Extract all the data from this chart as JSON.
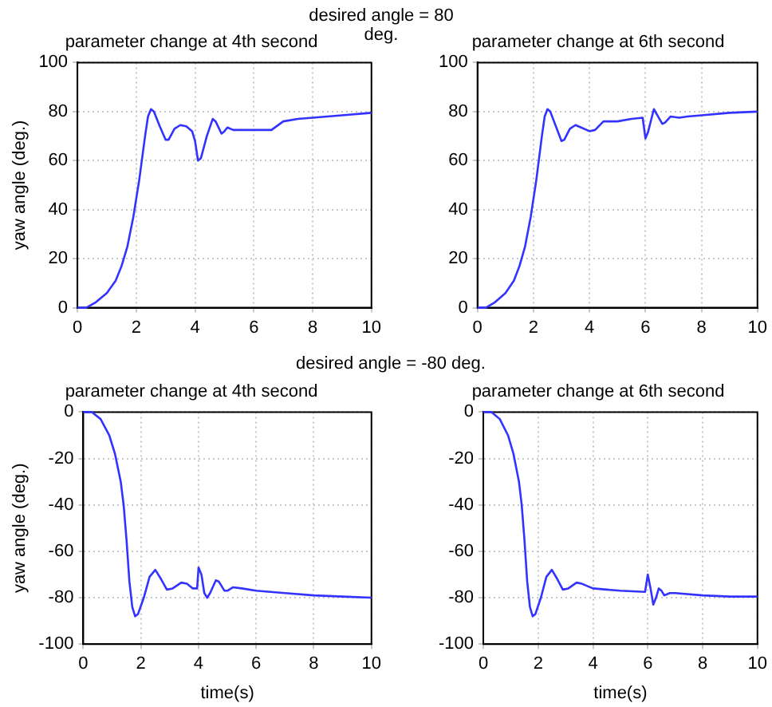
{
  "chart_data": [
    {
      "type": "line",
      "title": "parameter change at 4th second",
      "ylabel": "yaw angle (deg.)",
      "annotations": [
        "desired angle = 80 deg."
      ],
      "xlim": [
        0,
        10
      ],
      "xticks": [
        0,
        2,
        4,
        6,
        8,
        10
      ],
      "ylim": [
        0,
        100
      ],
      "yticks": [
        0,
        20,
        40,
        60,
        80,
        100
      ],
      "grid": true,
      "legend": false,
      "marker": "none",
      "line_style": "solid",
      "series": [
        {
          "color": "#3333ff",
          "x": [
            0,
            0.3,
            0.6,
            1.0,
            1.3,
            1.5,
            1.7,
            1.9,
            2.1,
            2.3,
            2.4,
            2.5,
            2.6,
            2.8,
            3.0,
            3.1,
            3.3,
            3.5,
            3.7,
            3.9,
            4.0,
            4.1,
            4.2,
            4.4,
            4.6,
            4.7,
            4.9,
            5.0,
            5.1,
            5.3,
            6.0,
            6.6,
            7.0,
            7.5,
            8,
            9,
            10
          ],
          "values": [
            0,
            0,
            2,
            6,
            11,
            17,
            25,
            37,
            52,
            70,
            78,
            81,
            80,
            74,
            68.5,
            68.5,
            73,
            74.5,
            74,
            72,
            68,
            60,
            61,
            70,
            77,
            76,
            71,
            72,
            73.5,
            72.5,
            72.5,
            72.5,
            76,
            77,
            77.5,
            78.5,
            79.5
          ]
        }
      ]
    },
    {
      "type": "line",
      "title": "parameter change at 6th second",
      "xlim": [
        0,
        10
      ],
      "xticks": [
        0,
        2,
        4,
        6,
        8,
        10
      ],
      "ylim": [
        0,
        100
      ],
      "yticks": [
        0,
        20,
        40,
        60,
        80,
        100
      ],
      "grid": true,
      "legend": false,
      "marker": "none",
      "line_style": "solid",
      "series": [
        {
          "color": "#3333ff",
          "x": [
            0,
            0.3,
            0.6,
            1.0,
            1.3,
            1.5,
            1.7,
            1.9,
            2.1,
            2.3,
            2.4,
            2.5,
            2.6,
            2.8,
            3.0,
            3.1,
            3.3,
            3.5,
            3.7,
            4.0,
            4.2,
            4.5,
            5,
            5.5,
            5.9,
            6.0,
            6.1,
            6.3,
            6.4,
            6.6,
            6.7,
            6.9,
            7.2,
            7.5,
            8,
            9,
            10
          ],
          "values": [
            0,
            0,
            2,
            6,
            11,
            17,
            25,
            37,
            52,
            70,
            78,
            81,
            80,
            74,
            68,
            68.5,
            73,
            74.5,
            73.5,
            72,
            72.5,
            76,
            76,
            77,
            77.5,
            69,
            72,
            81,
            79,
            75,
            75.5,
            78,
            77.5,
            78,
            78.5,
            79.5,
            80
          ]
        }
      ]
    },
    {
      "type": "line",
      "title": "parameter change at 4th second",
      "xlabel": "time(s)",
      "ylabel": "yaw angle (deg.)",
      "annotations": [
        "desired angle = -80 deg."
      ],
      "xlim": [
        0,
        10
      ],
      "xticks": [
        0,
        2,
        4,
        6,
        8,
        10
      ],
      "ylim": [
        -100,
        0
      ],
      "yticks": [
        -100,
        -80,
        -60,
        -40,
        -20,
        0
      ],
      "grid": true,
      "legend": false,
      "marker": "none",
      "line_style": "solid",
      "series": [
        {
          "color": "#3333ff",
          "x": [
            0,
            0.3,
            0.6,
            0.9,
            1.1,
            1.3,
            1.4,
            1.5,
            1.6,
            1.7,
            1.8,
            1.9,
            2.1,
            2.3,
            2.5,
            2.7,
            2.9,
            3.1,
            3.4,
            3.6,
            3.8,
            3.95,
            4.0,
            4.1,
            4.2,
            4.3,
            4.4,
            4.6,
            4.7,
            4.9,
            5.0,
            5.2,
            5.5,
            6,
            7,
            8,
            9,
            10
          ],
          "values": [
            0,
            0,
            -3,
            -10,
            -18,
            -30,
            -40,
            -55,
            -73,
            -84,
            -88,
            -87,
            -80,
            -71,
            -68,
            -72,
            -76.5,
            -76,
            -73.5,
            -74,
            -76,
            -76,
            -67,
            -70,
            -78,
            -80,
            -78,
            -72.5,
            -73,
            -77,
            -77,
            -75.5,
            -76,
            -77,
            -78,
            -79,
            -79.5,
            -80
          ]
        }
      ]
    },
    {
      "type": "line",
      "title": "parameter change at 6th second",
      "xlabel": "time(s)",
      "xlim": [
        0,
        10
      ],
      "xticks": [
        0,
        2,
        4,
        6,
        8,
        10
      ],
      "ylim": [
        -100,
        0
      ],
      "yticks": [
        -100,
        -80,
        -60,
        -40,
        -20,
        0
      ],
      "grid": true,
      "legend": false,
      "marker": "none",
      "line_style": "solid",
      "series": [
        {
          "color": "#3333ff",
          "x": [
            0,
            0.3,
            0.6,
            0.9,
            1.1,
            1.3,
            1.4,
            1.5,
            1.6,
            1.7,
            1.8,
            1.9,
            2.1,
            2.3,
            2.5,
            2.7,
            2.9,
            3.1,
            3.4,
            3.6,
            4.0,
            4.5,
            5,
            5.9,
            6.0,
            6.1,
            6.2,
            6.3,
            6.4,
            6.5,
            6.6,
            6.8,
            7,
            8,
            9,
            10
          ],
          "values": [
            0,
            0,
            -3,
            -10,
            -18,
            -30,
            -40,
            -55,
            -73,
            -84,
            -88,
            -87,
            -80,
            -71,
            -68,
            -72,
            -76.5,
            -76,
            -73.5,
            -74,
            -76,
            -76.5,
            -77,
            -77.5,
            -70,
            -76,
            -83,
            -80,
            -76,
            -77,
            -79,
            -78,
            -78,
            -79,
            -79.5,
            -79.5
          ]
        }
      ]
    }
  ]
}
